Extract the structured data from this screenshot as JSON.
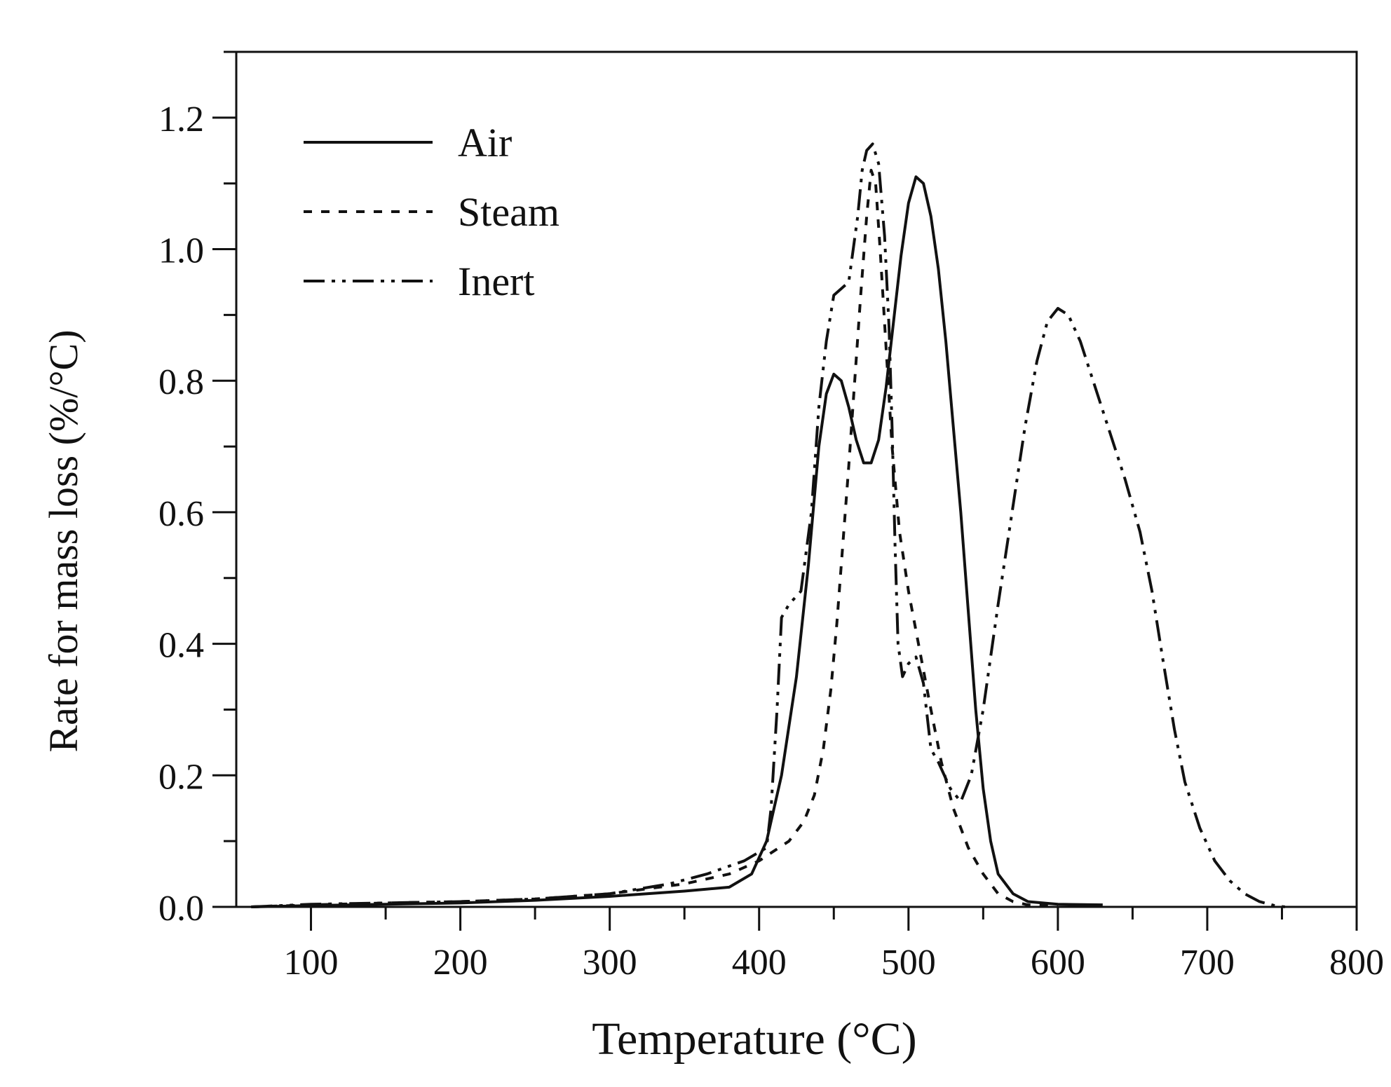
{
  "chart_data": {
    "type": "line",
    "title": "",
    "xlabel": "Temperature (°C)",
    "ylabel": "Rate for mass loss (%/°C)",
    "xlim": [
      50,
      800
    ],
    "ylim": [
      0,
      1.3
    ],
    "x_ticks": [
      100,
      200,
      300,
      400,
      500,
      600,
      700,
      800
    ],
    "x_tick_labels": [
      "100",
      "200",
      "300",
      "400",
      "500",
      "600",
      "700",
      "800"
    ],
    "y_ticks": [
      0,
      0.2,
      0.4,
      0.6,
      0.8,
      1.0,
      1.2
    ],
    "y_tick_labels": [
      "0.0",
      "0.2",
      "0.4",
      "0.6",
      "0.8",
      "1.0",
      "1.2"
    ],
    "grid": false,
    "legend_position": "top-left",
    "series": [
      {
        "name": "Air",
        "line_style": "solid",
        "points": [
          [
            60,
            0.0
          ],
          [
            100,
            0.002
          ],
          [
            150,
            0.004
          ],
          [
            200,
            0.006
          ],
          [
            250,
            0.01
          ],
          [
            300,
            0.016
          ],
          [
            350,
            0.024
          ],
          [
            380,
            0.03
          ],
          [
            395,
            0.05
          ],
          [
            405,
            0.1
          ],
          [
            415,
            0.2
          ],
          [
            425,
            0.35
          ],
          [
            433,
            0.52
          ],
          [
            440,
            0.7
          ],
          [
            445,
            0.78
          ],
          [
            450,
            0.81
          ],
          [
            455,
            0.8
          ],
          [
            460,
            0.76
          ],
          [
            465,
            0.71
          ],
          [
            470,
            0.675
          ],
          [
            475,
            0.675
          ],
          [
            480,
            0.71
          ],
          [
            485,
            0.79
          ],
          [
            490,
            0.89
          ],
          [
            495,
            0.99
          ],
          [
            500,
            1.07
          ],
          [
            505,
            1.11
          ],
          [
            510,
            1.1
          ],
          [
            515,
            1.05
          ],
          [
            520,
            0.97
          ],
          [
            525,
            0.86
          ],
          [
            530,
            0.73
          ],
          [
            535,
            0.6
          ],
          [
            540,
            0.45
          ],
          [
            545,
            0.3
          ],
          [
            550,
            0.18
          ],
          [
            555,
            0.1
          ],
          [
            560,
            0.05
          ],
          [
            570,
            0.02
          ],
          [
            580,
            0.008
          ],
          [
            600,
            0.004
          ],
          [
            630,
            0.003
          ]
        ]
      },
      {
        "name": "Steam",
        "line_style": "dotted",
        "points": [
          [
            60,
            0.0
          ],
          [
            100,
            0.003
          ],
          [
            150,
            0.006
          ],
          [
            200,
            0.008
          ],
          [
            250,
            0.012
          ],
          [
            300,
            0.02
          ],
          [
            350,
            0.035
          ],
          [
            380,
            0.05
          ],
          [
            400,
            0.07
          ],
          [
            410,
            0.085
          ],
          [
            420,
            0.1
          ],
          [
            430,
            0.13
          ],
          [
            437,
            0.17
          ],
          [
            443,
            0.24
          ],
          [
            448,
            0.33
          ],
          [
            452,
            0.43
          ],
          [
            456,
            0.55
          ],
          [
            460,
            0.67
          ],
          [
            464,
            0.8
          ],
          [
            468,
            0.93
          ],
          [
            472,
            1.05
          ],
          [
            475,
            1.12
          ],
          [
            478,
            1.1
          ],
          [
            481,
            1.0
          ],
          [
            485,
            0.85
          ],
          [
            489,
            0.7
          ],
          [
            494,
            0.57
          ],
          [
            500,
            0.48
          ],
          [
            505,
            0.42
          ],
          [
            510,
            0.36
          ],
          [
            515,
            0.3
          ],
          [
            522,
            0.22
          ],
          [
            530,
            0.15
          ],
          [
            540,
            0.09
          ],
          [
            550,
            0.05
          ],
          [
            560,
            0.02
          ],
          [
            570,
            0.008
          ],
          [
            580,
            0.003
          ],
          [
            600,
            0.001
          ]
        ]
      },
      {
        "name": "Inert",
        "line_style": "dash-dot-dot",
        "points": [
          [
            60,
            0.0
          ],
          [
            100,
            0.004
          ],
          [
            150,
            0.006
          ],
          [
            200,
            0.008
          ],
          [
            250,
            0.012
          ],
          [
            300,
            0.02
          ],
          [
            340,
            0.035
          ],
          [
            365,
            0.05
          ],
          [
            390,
            0.07
          ],
          [
            405,
            0.09
          ],
          [
            408,
            0.15
          ],
          [
            412,
            0.3
          ],
          [
            415,
            0.44
          ],
          [
            420,
            0.46
          ],
          [
            428,
            0.48
          ],
          [
            435,
            0.6
          ],
          [
            440,
            0.76
          ],
          [
            445,
            0.86
          ],
          [
            450,
            0.93
          ],
          [
            455,
            0.94
          ],
          [
            460,
            0.95
          ],
          [
            463,
            1.0
          ],
          [
            466,
            1.05
          ],
          [
            469,
            1.12
          ],
          [
            472,
            1.15
          ],
          [
            476,
            1.16
          ],
          [
            480,
            1.13
          ],
          [
            484,
            1.02
          ],
          [
            487,
            0.88
          ],
          [
            489,
            0.73
          ],
          [
            491,
            0.55
          ],
          [
            493,
            0.4
          ],
          [
            496,
            0.35
          ],
          [
            500,
            0.37
          ],
          [
            505,
            0.38
          ],
          [
            510,
            0.34
          ],
          [
            515,
            0.24
          ],
          [
            520,
            0.22
          ],
          [
            528,
            0.18
          ],
          [
            535,
            0.16
          ],
          [
            542,
            0.2
          ],
          [
            550,
            0.3
          ],
          [
            560,
            0.46
          ],
          [
            570,
            0.61
          ],
          [
            578,
            0.73
          ],
          [
            586,
            0.83
          ],
          [
            593,
            0.89
          ],
          [
            600,
            0.91
          ],
          [
            607,
            0.9
          ],
          [
            615,
            0.86
          ],
          [
            625,
            0.79
          ],
          [
            635,
            0.72
          ],
          [
            645,
            0.65
          ],
          [
            655,
            0.57
          ],
          [
            663,
            0.48
          ],
          [
            670,
            0.38
          ],
          [
            678,
            0.27
          ],
          [
            685,
            0.19
          ],
          [
            695,
            0.12
          ],
          [
            705,
            0.07
          ],
          [
            715,
            0.04
          ],
          [
            725,
            0.02
          ],
          [
            735,
            0.008
          ],
          [
            745,
            0.002
          ],
          [
            752,
            0.0
          ]
        ]
      }
    ]
  }
}
